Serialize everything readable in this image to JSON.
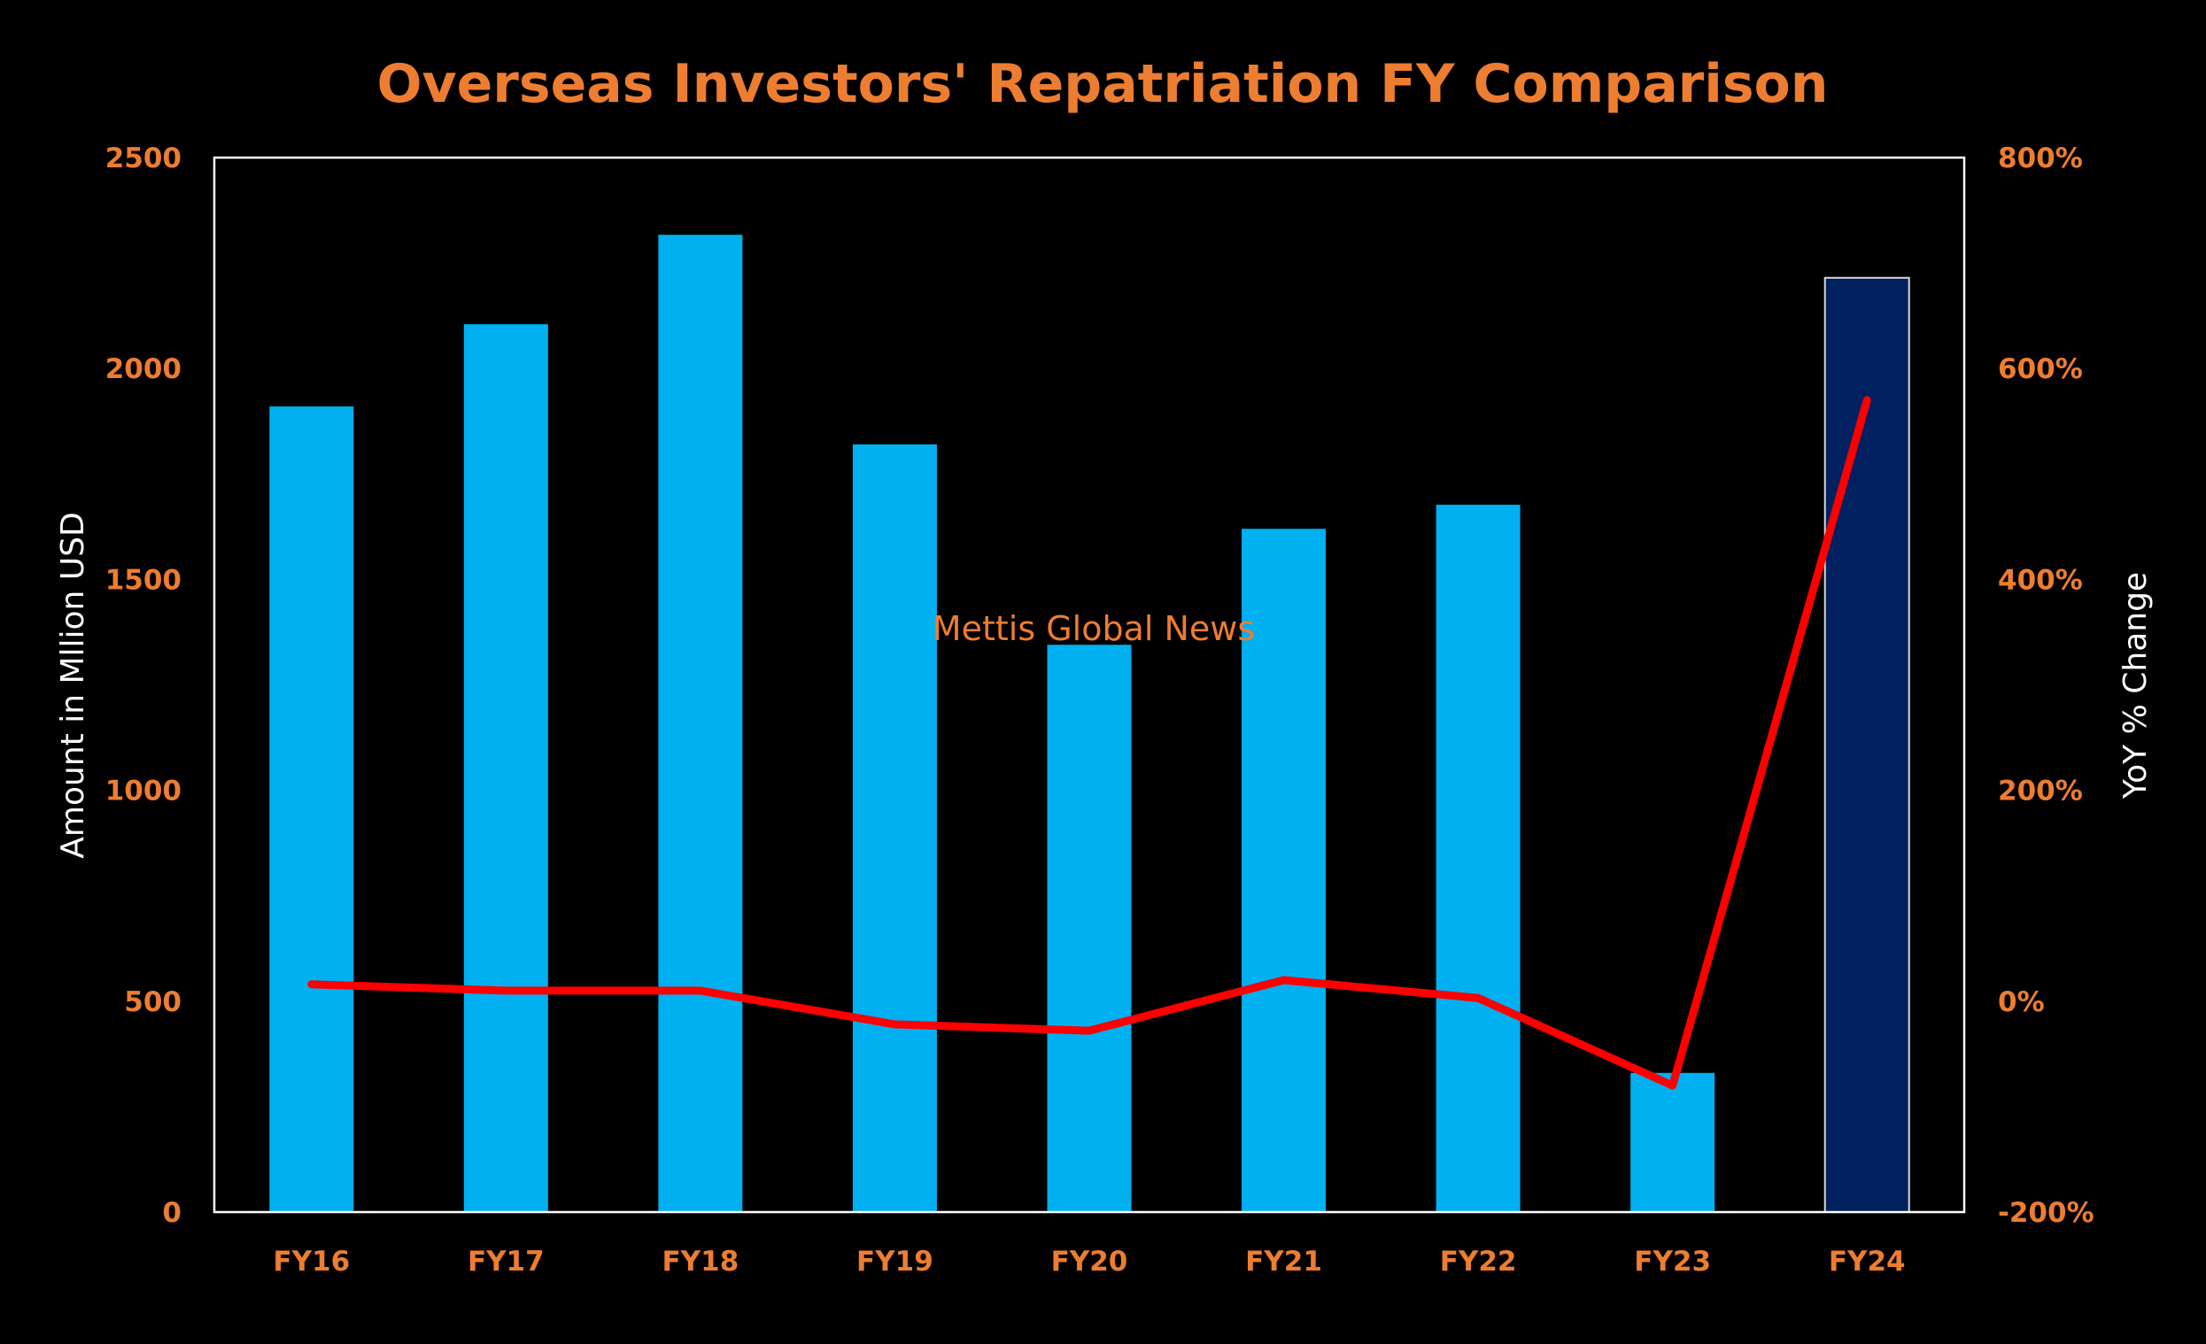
{
  "colors": {
    "background": "#000000",
    "title": "#ED7D31",
    "tick_labels": "#ED7D31",
    "axis_titles": "#FFFFFF",
    "plot_border": "#FFFFFF",
    "bar": "#00B0F0",
    "bar_highlight": "#002060",
    "bar_highlight_border": "#D9D9D9",
    "line": "#FF0000",
    "watermark": "#ED7D31"
  },
  "watermark": "Mettis Global News",
  "chart_data": {
    "type": "bar",
    "title": "Overseas Investors' Repatriation FY Comparison",
    "xlabel": "",
    "ylabel": "Amount in Mllion USD",
    "y2label": "YoY % Change",
    "categories": [
      "FY16",
      "FY17",
      "FY18",
      "FY19",
      "FY20",
      "FY21",
      "FY22",
      "FY23",
      "FY24"
    ],
    "ylim": [
      0,
      2500
    ],
    "yticks": [
      0,
      500,
      1000,
      1500,
      2000,
      2500
    ],
    "ytick_labels": [
      "0",
      "500",
      "1000",
      "1500",
      "2000",
      "2500"
    ],
    "y2lim": [
      -200,
      800
    ],
    "y2ticks": [
      -200,
      0,
      200,
      400,
      600,
      800
    ],
    "y2tick_labels": [
      "-200%",
      "0%",
      "200%",
      "400%",
      "600%",
      "800%"
    ],
    "grid": false,
    "legend": "none",
    "highlighted_category": "FY24",
    "series": [
      {
        "type": "bar",
        "axis": "left",
        "values": [
          1910,
          2105,
          2317,
          1820,
          1345,
          1620,
          1677,
          330,
          2215
        ]
      },
      {
        "type": "line",
        "axis": "right",
        "values": [
          16,
          10,
          10,
          -22,
          -28,
          20,
          3,
          -80,
          570
        ]
      }
    ]
  }
}
